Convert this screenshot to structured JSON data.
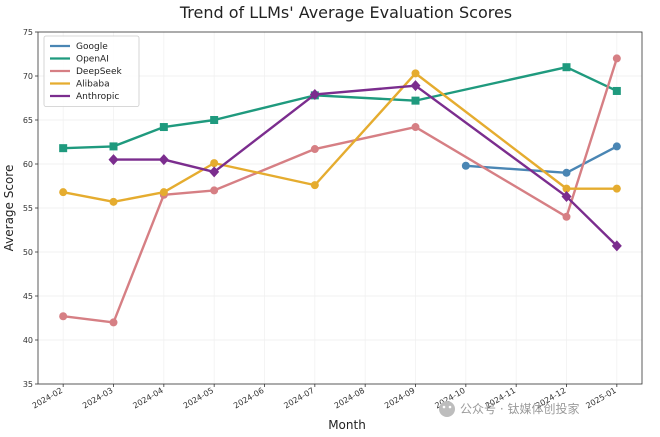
{
  "chart_data": {
    "type": "line",
    "title": "Trend of LLMs' Average Evaluation Scores",
    "xlabel": "Month",
    "ylabel": "Average Score",
    "ylim": [
      35,
      75
    ],
    "yticks": [
      35,
      40,
      45,
      50,
      55,
      60,
      65,
      70,
      75
    ],
    "xticks": [
      "2024-02",
      "2024-03",
      "2024-04",
      "2024-05",
      "2024-06",
      "2024-07",
      "2024-08",
      "2024-09",
      "2024-10",
      "2024-11",
      "2024-12",
      "2025-01"
    ],
    "grid": true,
    "legend_position": "top-left",
    "series": [
      {
        "name": "Google",
        "color": "#4a86b4",
        "marker": "circle",
        "points": [
          {
            "x": "2024-10",
            "y": 59.8
          },
          {
            "x": "2024-12",
            "y": 59.0
          },
          {
            "x": "2025-01",
            "y": 62.0
          }
        ]
      },
      {
        "name": "OpenAI",
        "color": "#1f9a7e",
        "marker": "square",
        "points": [
          {
            "x": "2024-02",
            "y": 61.8
          },
          {
            "x": "2024-03",
            "y": 62.0
          },
          {
            "x": "2024-04",
            "y": 64.2
          },
          {
            "x": "2024-05",
            "y": 65.0
          },
          {
            "x": "2024-07",
            "y": 67.8
          },
          {
            "x": "2024-09",
            "y": 67.2
          },
          {
            "x": "2024-12",
            "y": 71.0
          },
          {
            "x": "2025-01",
            "y": 68.3
          }
        ]
      },
      {
        "name": "DeepSeek",
        "color": "#d67f84",
        "marker": "circle",
        "points": [
          {
            "x": "2024-02",
            "y": 42.7
          },
          {
            "x": "2024-03",
            "y": 42.0
          },
          {
            "x": "2024-04",
            "y": 56.5
          },
          {
            "x": "2024-05",
            "y": 57.0
          },
          {
            "x": "2024-07",
            "y": 61.7
          },
          {
            "x": "2024-09",
            "y": 64.2
          },
          {
            "x": "2024-12",
            "y": 54.0
          },
          {
            "x": "2025-01",
            "y": 72.0
          }
        ]
      },
      {
        "name": "Alibaba",
        "color": "#e5ac2f",
        "marker": "circle",
        "points": [
          {
            "x": "2024-02",
            "y": 56.8
          },
          {
            "x": "2024-03",
            "y": 55.7
          },
          {
            "x": "2024-04",
            "y": 56.8
          },
          {
            "x": "2024-05",
            "y": 60.1
          },
          {
            "x": "2024-07",
            "y": 57.6
          },
          {
            "x": "2024-09",
            "y": 70.3
          },
          {
            "x": "2024-12",
            "y": 57.2
          },
          {
            "x": "2025-01",
            "y": 57.2
          }
        ]
      },
      {
        "name": "Anthropic",
        "color": "#7b2d8e",
        "marker": "diamond",
        "points": [
          {
            "x": "2024-03",
            "y": 60.5
          },
          {
            "x": "2024-04",
            "y": 60.5
          },
          {
            "x": "2024-05",
            "y": 59.1
          },
          {
            "x": "2024-07",
            "y": 67.9
          },
          {
            "x": "2024-09",
            "y": 68.9
          },
          {
            "x": "2024-12",
            "y": 56.3
          },
          {
            "x": "2025-01",
            "y": 50.7
          }
        ]
      }
    ]
  },
  "watermark": "公众号 · 钛媒体创投家"
}
